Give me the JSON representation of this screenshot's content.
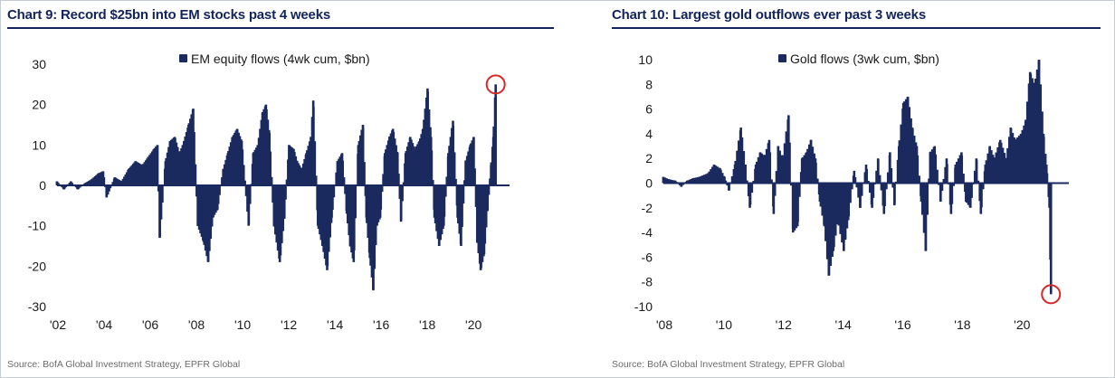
{
  "chart_data": [
    {
      "id": "chart9",
      "type": "bar",
      "title": "Chart 9: Record $25bn into EM stocks past 4 weeks",
      "legend": "EM equity flows (4wk cum, $bn)",
      "legend_position": "top-center",
      "source": "Source: BofA Global Investment Strategy, EPFR Global",
      "xlabel": "",
      "ylabel": "",
      "ylim": [
        -30,
        30
      ],
      "yticks": [
        30,
        20,
        10,
        0,
        -10,
        -20,
        -30
      ],
      "xlim": [
        2002.0,
        2021.6
      ],
      "xticks": [
        {
          "t": 2002.0,
          "label": "'02"
        },
        {
          "t": 2004.0,
          "label": "'04"
        },
        {
          "t": 2006.0,
          "label": "'06"
        },
        {
          "t": 2008.0,
          "label": "'08"
        },
        {
          "t": 2010.0,
          "label": "'10"
        },
        {
          "t": 2012.0,
          "label": "'12"
        },
        {
          "t": 2014.0,
          "label": "'14"
        },
        {
          "t": 2016.0,
          "label": "'16"
        },
        {
          "t": 2018.0,
          "label": "'18"
        },
        {
          "t": 2020.0,
          "label": "'20"
        }
      ],
      "bar_color": "#1b2a5e",
      "highlight": {
        "t": 2021.0,
        "value": 25,
        "color": "#d62828"
      },
      "series": [
        {
          "name": "EM equity flows (4wk cum, $bn)",
          "points": [
            [
              2002.0,
              1
            ],
            [
              2002.3,
              -1
            ],
            [
              2002.6,
              1
            ],
            [
              2002.9,
              -1
            ],
            [
              2003.2,
              0.5
            ],
            [
              2003.5,
              1.5
            ],
            [
              2003.8,
              3
            ],
            [
              2004.0,
              3.5
            ],
            [
              2004.15,
              -3
            ],
            [
              2004.5,
              2
            ],
            [
              2004.8,
              1
            ],
            [
              2005.1,
              4
            ],
            [
              2005.4,
              6
            ],
            [
              2005.7,
              5
            ],
            [
              2005.95,
              7
            ],
            [
              2006.2,
              9
            ],
            [
              2006.35,
              10
            ],
            [
              2006.45,
              -13
            ],
            [
              2006.7,
              6
            ],
            [
              2006.9,
              11
            ],
            [
              2007.1,
              12
            ],
            [
              2007.3,
              8
            ],
            [
              2007.45,
              10
            ],
            [
              2007.7,
              15
            ],
            [
              2007.9,
              19
            ],
            [
              2008.1,
              -10
            ],
            [
              2008.35,
              -14
            ],
            [
              2008.55,
              -19
            ],
            [
              2008.75,
              -8
            ],
            [
              2008.95,
              -6
            ],
            [
              2009.2,
              4
            ],
            [
              2009.4,
              8
            ],
            [
              2009.6,
              12
            ],
            [
              2009.8,
              14
            ],
            [
              2010.0,
              11
            ],
            [
              2010.3,
              -10
            ],
            [
              2010.5,
              8
            ],
            [
              2010.7,
              10
            ],
            [
              2010.9,
              18
            ],
            [
              2011.05,
              20
            ],
            [
              2011.2,
              13
            ],
            [
              2011.4,
              -10
            ],
            [
              2011.65,
              -19
            ],
            [
              2011.85,
              -8
            ],
            [
              2012.05,
              10
            ],
            [
              2012.25,
              9
            ],
            [
              2012.4,
              6
            ],
            [
              2012.6,
              4
            ],
            [
              2012.8,
              8
            ],
            [
              2013.0,
              12
            ],
            [
              2013.1,
              21
            ],
            [
              2013.3,
              -10
            ],
            [
              2013.5,
              -15
            ],
            [
              2013.7,
              -21
            ],
            [
              2013.9,
              -8
            ],
            [
              2014.15,
              6
            ],
            [
              2014.35,
              8
            ],
            [
              2014.55,
              -7
            ],
            [
              2014.7,
              -15
            ],
            [
              2014.85,
              -19
            ],
            [
              2015.05,
              10
            ],
            [
              2015.25,
              15
            ],
            [
              2015.4,
              -8
            ],
            [
              2015.55,
              -18
            ],
            [
              2015.7,
              -26
            ],
            [
              2015.85,
              -10
            ],
            [
              2016.0,
              -8
            ],
            [
              2016.2,
              8
            ],
            [
              2016.4,
              12
            ],
            [
              2016.55,
              14
            ],
            [
              2016.75,
              8
            ],
            [
              2016.9,
              -9
            ],
            [
              2017.1,
              8
            ],
            [
              2017.3,
              12
            ],
            [
              2017.5,
              9
            ],
            [
              2017.7,
              11
            ],
            [
              2017.85,
              14
            ],
            [
              2018.05,
              24
            ],
            [
              2018.2,
              12
            ],
            [
              2018.35,
              -8
            ],
            [
              2018.55,
              -15
            ],
            [
              2018.75,
              -10
            ],
            [
              2018.95,
              8
            ],
            [
              2019.15,
              16
            ],
            [
              2019.35,
              -8
            ],
            [
              2019.5,
              -15
            ],
            [
              2019.7,
              6
            ],
            [
              2019.9,
              10
            ],
            [
              2020.05,
              12
            ],
            [
              2020.2,
              -14
            ],
            [
              2020.35,
              -21
            ],
            [
              2020.5,
              -17
            ],
            [
              2020.65,
              -6
            ],
            [
              2020.8,
              5
            ],
            [
              2020.9,
              12
            ],
            [
              2021.0,
              25
            ]
          ]
        }
      ]
    },
    {
      "id": "chart10",
      "type": "bar",
      "title": "Chart 10: Largest gold outflows ever past 3 weeks",
      "legend": "Gold flows (3wk cum, $bn)",
      "legend_position": "top-center",
      "source": "Source: BofA Global Investment Strategy, EPFR Global",
      "xlabel": "",
      "ylabel": "",
      "ylim": [
        -10,
        10
      ],
      "yticks": [
        10,
        8,
        6,
        4,
        2,
        0,
        -2,
        -4,
        -6,
        -8,
        -10
      ],
      "xlim": [
        2008.0,
        2021.6
      ],
      "xticks": [
        {
          "t": 2008.0,
          "label": "'08"
        },
        {
          "t": 2010.0,
          "label": "'10"
        },
        {
          "t": 2012.0,
          "label": "'12"
        },
        {
          "t": 2014.0,
          "label": "'14"
        },
        {
          "t": 2016.0,
          "label": "'16"
        },
        {
          "t": 2018.0,
          "label": "'18"
        },
        {
          "t": 2020.0,
          "label": "'20"
        }
      ],
      "bar_color": "#1b2a5e",
      "highlight": {
        "t": 2021.0,
        "value": -9,
        "color": "#d62828"
      },
      "series": [
        {
          "name": "Gold flows (3wk cum, $bn)",
          "points": [
            [
              2008.0,
              0.5
            ],
            [
              2008.2,
              0.3
            ],
            [
              2008.4,
              0.2
            ],
            [
              2008.6,
              -0.3
            ],
            [
              2008.8,
              0.2
            ],
            [
              2009.0,
              0.4
            ],
            [
              2009.2,
              0.5
            ],
            [
              2009.5,
              0.8
            ],
            [
              2009.7,
              1.5
            ],
            [
              2009.9,
              1.2
            ],
            [
              2010.05,
              0.5
            ],
            [
              2010.2,
              -0.6
            ],
            [
              2010.4,
              1.5
            ],
            [
              2010.6,
              4.5
            ],
            [
              2010.75,
              1.5
            ],
            [
              2010.9,
              -2
            ],
            [
              2011.1,
              1.5
            ],
            [
              2011.25,
              2.5
            ],
            [
              2011.4,
              2.2
            ],
            [
              2011.55,
              3.5
            ],
            [
              2011.7,
              -2.5
            ],
            [
              2011.85,
              3
            ],
            [
              2012.0,
              2
            ],
            [
              2012.2,
              5.5
            ],
            [
              2012.35,
              -4
            ],
            [
              2012.5,
              -3.5
            ],
            [
              2012.65,
              2
            ],
            [
              2012.8,
              2.5
            ],
            [
              2012.95,
              3.5
            ],
            [
              2013.1,
              2
            ],
            [
              2013.25,
              -1.5
            ],
            [
              2013.4,
              -3.5
            ],
            [
              2013.55,
              -7.5
            ],
            [
              2013.7,
              -5.5
            ],
            [
              2013.85,
              -3
            ],
            [
              2014.05,
              -5.5
            ],
            [
              2014.2,
              -3
            ],
            [
              2014.4,
              1
            ],
            [
              2014.6,
              -2
            ],
            [
              2014.8,
              1.5
            ],
            [
              2015.0,
              -2
            ],
            [
              2015.2,
              2
            ],
            [
              2015.4,
              -2.5
            ],
            [
              2015.6,
              2.5
            ],
            [
              2015.75,
              -1.8
            ],
            [
              2015.9,
              3
            ],
            [
              2016.05,
              6.5
            ],
            [
              2016.2,
              7
            ],
            [
              2016.35,
              4.5
            ],
            [
              2016.5,
              3
            ],
            [
              2016.65,
              -1.5
            ],
            [
              2016.8,
              -5.5
            ],
            [
              2016.95,
              2.5
            ],
            [
              2017.1,
              3
            ],
            [
              2017.3,
              -1.5
            ],
            [
              2017.5,
              2
            ],
            [
              2017.65,
              -2.5
            ],
            [
              2017.8,
              1.5
            ],
            [
              2018.0,
              2.5
            ],
            [
              2018.15,
              -1.5
            ],
            [
              2018.3,
              -2
            ],
            [
              2018.5,
              2
            ],
            [
              2018.65,
              -2.5
            ],
            [
              2018.8,
              1.5
            ],
            [
              2018.95,
              3
            ],
            [
              2019.1,
              2
            ],
            [
              2019.3,
              3.5
            ],
            [
              2019.5,
              2
            ],
            [
              2019.65,
              4.5
            ],
            [
              2019.8,
              3.5
            ],
            [
              2020.0,
              4
            ],
            [
              2020.15,
              5
            ],
            [
              2020.3,
              9
            ],
            [
              2020.45,
              8
            ],
            [
              2020.6,
              10
            ],
            [
              2020.75,
              4
            ],
            [
              2020.85,
              1.5
            ],
            [
              2020.95,
              -2
            ],
            [
              2021.0,
              -9
            ]
          ]
        }
      ]
    }
  ]
}
